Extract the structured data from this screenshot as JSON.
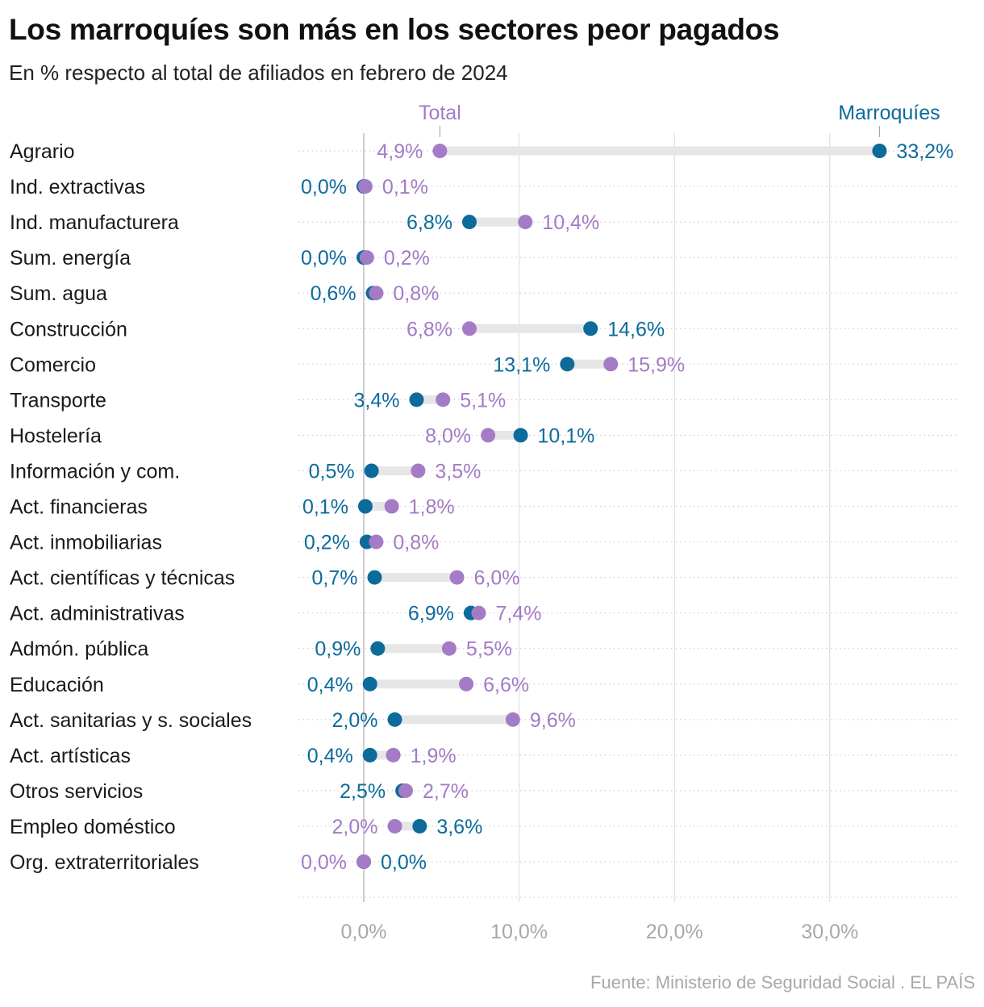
{
  "colors": {
    "moroccans": "#0d6b9c",
    "total": "#a47bc6",
    "connector": "#e6e6e6",
    "axis_text": "#a8a8a8",
    "gridline": "#d9d9d9",
    "row_dots": "#cfcfcf"
  },
  "chart_data": {
    "type": "dumbbell",
    "title": "Los marroquíes son más en los sectores peor pagados",
    "subtitle": "En % respecto al total de afiliados en febrero de 2024",
    "xlim": [
      0,
      38
    ],
    "x_ticks": [
      0,
      10,
      20,
      30
    ],
    "x_tick_labels": [
      "0,0%",
      "10,0%",
      "20,0%",
      "30,0%"
    ],
    "grid": true,
    "legend_placement": "top, labels above the first row",
    "series": [
      {
        "name": "Total",
        "color": "#a47bc6",
        "values": [
          4.9,
          0.1,
          10.4,
          0.2,
          0.8,
          6.8,
          15.9,
          5.1,
          8.0,
          3.5,
          1.8,
          0.8,
          6.0,
          7.4,
          5.5,
          6.6,
          9.6,
          1.9,
          2.7,
          2.0,
          0.0
        ]
      },
      {
        "name": "Marroquíes",
        "color": "#0d6b9c",
        "values": [
          33.2,
          0.0,
          6.8,
          0.0,
          0.6,
          14.6,
          13.1,
          3.4,
          10.1,
          0.5,
          0.1,
          0.2,
          0.7,
          6.9,
          0.9,
          0.4,
          2.0,
          0.4,
          2.5,
          3.6,
          0.0
        ]
      }
    ],
    "categories": [
      "Agrario",
      "Ind. extractivas",
      "Ind. manufacturera",
      "Sum. energía",
      "Sum. agua",
      "Construcción",
      "Comercio",
      "Transporte",
      "Hostelería",
      "Información y com.",
      "Act. financieras",
      "Act. inmobiliarias",
      "Act. científicas y técnicas",
      "Act. administrativas",
      "Admón. pública",
      "Educación",
      "Act. sanitarias y s. sociales",
      "Act. artísticas",
      "Otros servicios",
      "Empleo doméstico",
      "Org. extraterritoriales"
    ],
    "labels": {
      "total": [
        "4,9%",
        "0,1%",
        "10,4%",
        "0,2%",
        "0,8%",
        "6,8%",
        "15,9%",
        "5,1%",
        "8,0%",
        "3,5%",
        "1,8%",
        "0,8%",
        "6,0%",
        "7,4%",
        "5,5%",
        "6,6%",
        "9,6%",
        "1,9%",
        "2,7%",
        "2,0%",
        "0,0%"
      ],
      "moroccans": [
        "33,2%",
        "0,0%",
        "6,8%",
        "0,0%",
        "0,6%",
        "14,6%",
        "13,1%",
        "3,4%",
        "10,1%",
        "0,5%",
        "0,1%",
        "0,2%",
        "0,7%",
        "6,9%",
        "0,9%",
        "0,4%",
        "2,0%",
        "0,4%",
        "2,5%",
        "3,6%",
        "0,0%"
      ]
    }
  },
  "source": {
    "text": "Fuente: Ministerio de Seguridad Social",
    "publisher": "EL PAÍS"
  }
}
